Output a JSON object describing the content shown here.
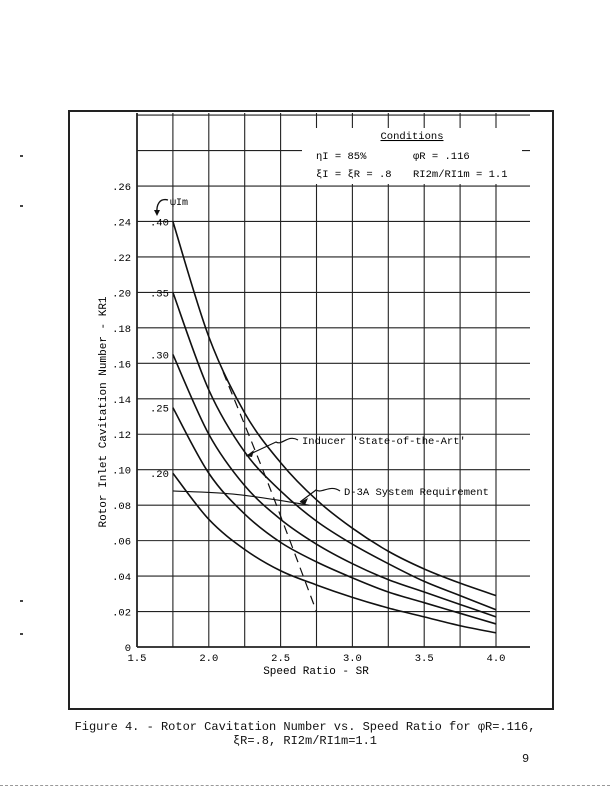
{
  "page": {
    "caption_line1": "Figure 4. - Rotor Cavitation Number vs. Speed Ratio for φR=.116,",
    "caption_line2": "ξR=.8, RI2m/RI1m=1.1",
    "page_number": "9"
  },
  "chart_data": {
    "type": "line",
    "title": "Figure 4. - Rotor Cavitation Number vs. Speed Ratio for φR=.116, ξR=.8, RI2m/RI1m=1.1",
    "xlabel": "Speed Ratio - SR",
    "ylabel": "Rotor Inlet Cavitation Number - KR1",
    "xlim": [
      1.5,
      4.0
    ],
    "ylim": [
      0,
      0.28
    ],
    "x_ticks": [
      "1.5",
      "2.0",
      "2.5",
      "3.0",
      "3.5",
      "4.0"
    ],
    "y_ticks": [
      "0",
      ".02",
      ".04",
      ".06",
      ".08",
      ".10",
      ".12",
      ".14",
      ".16",
      ".18",
      ".20",
      ".22",
      ".24",
      ".26"
    ],
    "grid": true,
    "grid_x_step": 0.25,
    "grid_y_step": 0.02,
    "parameter_label": "ψIm",
    "x": [
      1.75,
      2.0,
      2.25,
      2.5,
      2.75,
      3.0,
      3.25,
      3.5,
      3.75,
      4.0
    ],
    "series": [
      {
        "name": ".40",
        "values": [
          0.24,
          0.175,
          0.132,
          0.104,
          0.083,
          0.067,
          0.054,
          0.044,
          0.036,
          0.029
        ]
      },
      {
        "name": ".35",
        "values": [
          0.2,
          0.145,
          0.11,
          0.088,
          0.071,
          0.058,
          0.047,
          0.037,
          0.029,
          0.021
        ]
      },
      {
        "name": ".30",
        "values": [
          0.165,
          0.12,
          0.091,
          0.072,
          0.058,
          0.047,
          0.038,
          0.031,
          0.024,
          0.017
        ]
      },
      {
        "name": ".25",
        "values": [
          0.135,
          0.098,
          0.075,
          0.059,
          0.048,
          0.039,
          0.031,
          0.025,
          0.019,
          0.013
        ]
      },
      {
        "name": ".20",
        "values": [
          0.098,
          0.072,
          0.055,
          0.043,
          0.035,
          0.028,
          0.022,
          0.017,
          0.012,
          0.008
        ]
      }
    ],
    "annotations": [
      {
        "name": "Inducer 'State-of-the-Art'",
        "style": "dashed",
        "points": [
          [
            2.1,
            0.155
          ],
          [
            2.4,
            0.095
          ],
          [
            2.75,
            0.02
          ]
        ]
      },
      {
        "name": "D-3A System Requirement",
        "style": "solid",
        "points": [
          [
            1.75,
            0.088
          ],
          [
            2.2,
            0.086
          ],
          [
            2.7,
            0.08
          ]
        ]
      }
    ],
    "conditions": {
      "title": "Conditions",
      "line1_left": "ηI = 85%",
      "line1_right": "φR = .116",
      "line2_left": "ξI = ξR = .8",
      "line2_right": "RI2m/RI1m = 1.1"
    }
  }
}
